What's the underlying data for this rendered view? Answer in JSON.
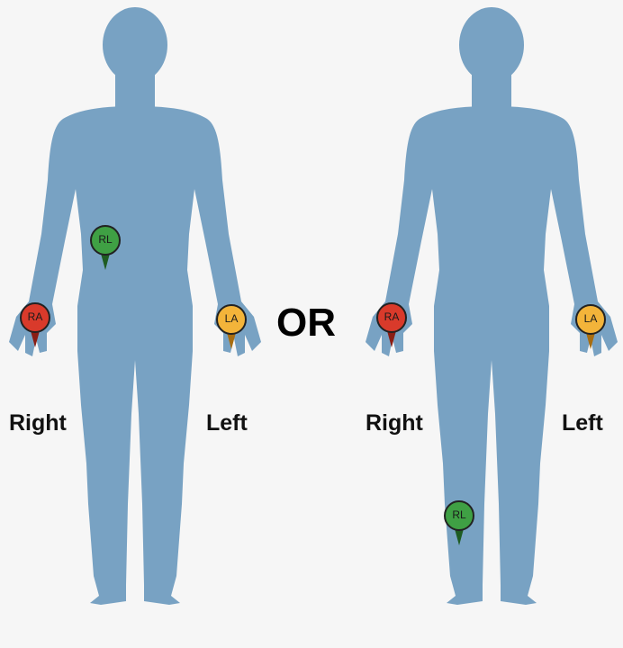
{
  "diagram": {
    "or_label": "OR",
    "figures": [
      {
        "right_label": "Right",
        "left_label": "Left",
        "electrodes": {
          "ra": {
            "code": "RA",
            "color": "#d93a2b",
            "dark": "#8a1d14"
          },
          "la": {
            "code": "LA",
            "color": "#f3b43a",
            "dark": "#a86d10"
          },
          "rl": {
            "code": "RL",
            "color": "#3fa044",
            "dark": "#1e5c22"
          }
        }
      },
      {
        "right_label": "Right",
        "left_label": "Left",
        "electrodes": {
          "ra": {
            "code": "RA",
            "color": "#d93a2b",
            "dark": "#8a1d14"
          },
          "la": {
            "code": "LA",
            "color": "#f3b43a",
            "dark": "#a86d10"
          },
          "rl": {
            "code": "RL",
            "color": "#3fa044",
            "dark": "#1e5c22"
          }
        }
      }
    ],
    "body_color": "#78a2c3"
  }
}
